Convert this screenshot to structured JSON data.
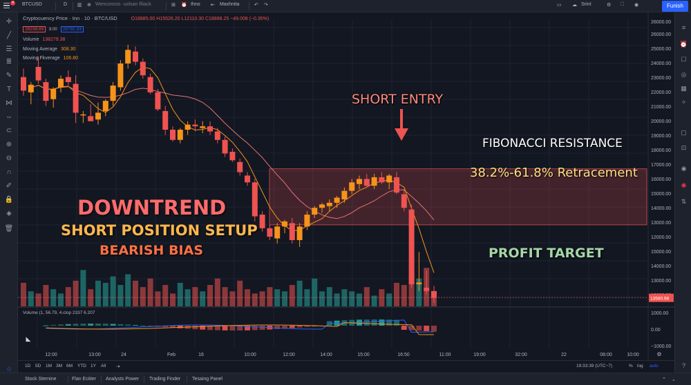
{
  "toolbar": {
    "symbol": "BTCUSD",
    "interval": "D",
    "indicators_label": "Wenconoss  ·uolsan filiack",
    "alert_label": "Ihno",
    "replay_label": "Maxhnita",
    "layout_label": "Srint",
    "publish_label": "Funish",
    "notification_count": "4"
  },
  "legend": {
    "title": "Cryptocuency Price · Inn · 10 · BTC/USD",
    "ohlc": "O18885.00 H15526.20 L12110.30 C18888.25 −49.008 (−0.35%)",
    "sell_price": "28238.89",
    "spread": "8.00",
    "buy_price": "26792.33",
    "volume_label": "Volume",
    "volume_value": "138279.38",
    "ma1_label": "Moving Average",
    "ma1_value": "308.30",
    "ma2_label": "Moving Fkverage",
    "ma2_value": "106.80"
  },
  "annotations": {
    "short_entry": "SHORT ENTRY",
    "fib_resistance": "FIBONACCI RESISTANCE",
    "fib_retracement": "38.2%-61.8% Retracement",
    "downtrend": "DOWNTREND",
    "short_setup": "SHORT POSITION SETUP",
    "bearish_bias": "BEARISH BIAS",
    "profit_target": "PROFIT TARGET"
  },
  "sub_pane": {
    "legend": "Volume (1, 56.79, 4.clop  2337  6.207"
  },
  "chart_data": {
    "type": "candlestick",
    "price_axis_ticks": [
      26000,
      25000,
      24000,
      23000,
      22000,
      21000,
      20000,
      19000,
      18000,
      17000,
      16000,
      15000,
      14000,
      13000,
      12000,
      15000,
      14000,
      13000,
      12000
    ],
    "price_axis_top_label": "26000.00",
    "current_price_label": "13580.98",
    "sub_axis_ticks": [
      "1000.00",
      "0.00",
      "−1000.00"
    ],
    "time_labels": [
      "12:00",
      "13:00",
      "24",
      "Feb",
      "16",
      "10:00",
      "12:00",
      "14:00",
      "15:00",
      "16:50",
      "11:00",
      "19:00",
      "32:00",
      "22",
      "08:00",
      "10:00"
    ],
    "candles": [
      {
        "o": 22900,
        "h": 23400,
        "l": 21800,
        "c": 22100
      },
      {
        "o": 22000,
        "h": 22600,
        "l": 21300,
        "c": 22450
      },
      {
        "o": 23500,
        "h": 24100,
        "l": 22500,
        "c": 22700
      },
      {
        "o": 22600,
        "h": 22800,
        "l": 21200,
        "c": 21500
      },
      {
        "o": 21600,
        "h": 22300,
        "l": 21100,
        "c": 22200
      },
      {
        "o": 22300,
        "h": 23000,
        "l": 22000,
        "c": 22800
      },
      {
        "o": 22900,
        "h": 23300,
        "l": 22400,
        "c": 22600
      },
      {
        "o": 22500,
        "h": 23000,
        "l": 20200,
        "c": 20800
      },
      {
        "o": 20700,
        "h": 20900,
        "l": 20200,
        "c": 20700
      },
      {
        "o": 20600,
        "h": 21300,
        "l": 20300,
        "c": 20300
      },
      {
        "o": 20400,
        "h": 21400,
        "l": 20100,
        "c": 20800
      },
      {
        "o": 20900,
        "h": 21600,
        "l": 20600,
        "c": 21500
      },
      {
        "o": 21500,
        "h": 22600,
        "l": 21200,
        "c": 22400
      },
      {
        "o": 22300,
        "h": 23900,
        "l": 22100,
        "c": 23700
      },
      {
        "o": 23700,
        "h": 24800,
        "l": 23400,
        "c": 24500
      },
      {
        "o": 24400,
        "h": 24700,
        "l": 23600,
        "c": 23800
      },
      {
        "o": 23800,
        "h": 24000,
        "l": 22800,
        "c": 23000
      },
      {
        "o": 22900,
        "h": 23100,
        "l": 21900,
        "c": 22000
      },
      {
        "o": 22000,
        "h": 22200,
        "l": 20900,
        "c": 21000
      },
      {
        "o": 20900,
        "h": 21200,
        "l": 19500,
        "c": 19800
      },
      {
        "o": 19800,
        "h": 20000,
        "l": 19100,
        "c": 19200
      },
      {
        "o": 19200,
        "h": 19900,
        "l": 19000,
        "c": 19800
      },
      {
        "o": 19800,
        "h": 20300,
        "l": 19500,
        "c": 20100
      },
      {
        "o": 20100,
        "h": 20400,
        "l": 19700,
        "c": 20000
      },
      {
        "o": 19900,
        "h": 20300,
        "l": 19600,
        "c": 20000
      },
      {
        "o": 20000,
        "h": 20300,
        "l": 19500,
        "c": 19700
      },
      {
        "o": 19700,
        "h": 19900,
        "l": 19000,
        "c": 19200
      },
      {
        "o": 19200,
        "h": 19400,
        "l": 18200,
        "c": 18400
      },
      {
        "o": 18500,
        "h": 18700,
        "l": 17900,
        "c": 18000
      },
      {
        "o": 17900,
        "h": 18100,
        "l": 17100,
        "c": 17300
      },
      {
        "o": 17100,
        "h": 17300,
        "l": 16500,
        "c": 16700
      },
      {
        "o": 16700,
        "h": 16900,
        "l": 14400,
        "c": 14700
      },
      {
        "o": 14800,
        "h": 15000,
        "l": 13800,
        "c": 14000
      },
      {
        "o": 14000,
        "h": 14200,
        "l": 13300,
        "c": 13500
      },
      {
        "o": 13400,
        "h": 14300,
        "l": 13100,
        "c": 14100
      },
      {
        "o": 14100,
        "h": 14500,
        "l": 13700,
        "c": 14400
      },
      {
        "o": 14300,
        "h": 14600,
        "l": 13100,
        "c": 13300
      },
      {
        "o": 13300,
        "h": 14300,
        "l": 12900,
        "c": 14100
      },
      {
        "o": 14100,
        "h": 15000,
        "l": 13900,
        "c": 14800
      },
      {
        "o": 14800,
        "h": 15300,
        "l": 14600,
        "c": 15200
      },
      {
        "o": 15200,
        "h": 15500,
        "l": 14900,
        "c": 15400
      },
      {
        "o": 15300,
        "h": 15700,
        "l": 15000,
        "c": 15500
      },
      {
        "o": 15500,
        "h": 15900,
        "l": 15200,
        "c": 15800
      },
      {
        "o": 15700,
        "h": 16400,
        "l": 15500,
        "c": 16200
      },
      {
        "o": 16200,
        "h": 16900,
        "l": 16000,
        "c": 16700
      },
      {
        "o": 16600,
        "h": 17100,
        "l": 16300,
        "c": 16900
      },
      {
        "o": 16900,
        "h": 17200,
        "l": 16400,
        "c": 16500
      },
      {
        "o": 16500,
        "h": 17200,
        "l": 16300,
        "c": 17000
      },
      {
        "o": 17000,
        "h": 17300,
        "l": 16600,
        "c": 16700
      },
      {
        "o": 16700,
        "h": 17200,
        "l": 16300,
        "c": 17100
      },
      {
        "o": 17000,
        "h": 17300,
        "l": 16000,
        "c": 16100
      },
      {
        "o": 16000,
        "h": 16300,
        "l": 15000,
        "c": 15200
      },
      {
        "o": 15100,
        "h": 15400,
        "l": 10500,
        "c": 10700
      },
      {
        "o": 10700,
        "h": 12600,
        "l": 10300,
        "c": 10800
      },
      {
        "o": 10500,
        "h": 11500,
        "l": 10100,
        "c": 10300
      },
      {
        "o": 10300,
        "h": 10600,
        "l": 9600,
        "c": 9900
      }
    ],
    "volume": [
      0.55,
      0.35,
      0.3,
      0.5,
      0.4,
      0.3,
      0.45,
      0.6,
      0.85,
      0.4,
      0.6,
      0.55,
      0.7,
      0.5,
      0.75,
      0.6,
      0.45,
      0.65,
      0.35,
      0.5,
      0.3,
      0.55,
      0.4,
      0.45,
      0.35,
      0.5,
      0.65,
      0.45,
      0.35,
      0.6,
      0.4,
      0.3,
      0.35,
      0.45,
      0.4,
      0.35,
      0.5,
      0.6,
      0.4,
      0.65,
      0.35,
      0.45,
      0.3,
      0.4,
      0.35,
      0.3,
      0.45,
      0.25,
      0.4,
      0.3,
      0.55,
      0.5,
      0.85,
      0.65,
      0.9,
      0.35
    ],
    "sma_fast_color": "#f7931a",
    "sma_slow_color": "#e57373",
    "bull_color": "#f7931a",
    "bear_color": "#ef5350",
    "volume_bull_color": "#26a69a",
    "volume_bear_color": "#ef5350",
    "zone_fill_color": "#ef5350",
    "zone_top": 17500,
    "zone_bottom": 14200,
    "arrow_color": "#ef5350"
  },
  "bottom_bar": {
    "timeframes": [
      "1D",
      "5D",
      "1M",
      "3M",
      "6M",
      "YTD",
      "1Y",
      "All"
    ],
    "clock": "19:33:39 (UTC−7)",
    "pct": "%",
    "log": "log",
    "auto": "auto"
  },
  "footer_tabs": [
    "Stock Sternine",
    "Flan Ecitier",
    "Analysts Power",
    "Trading Finder",
    "Tesaing Panel"
  ]
}
